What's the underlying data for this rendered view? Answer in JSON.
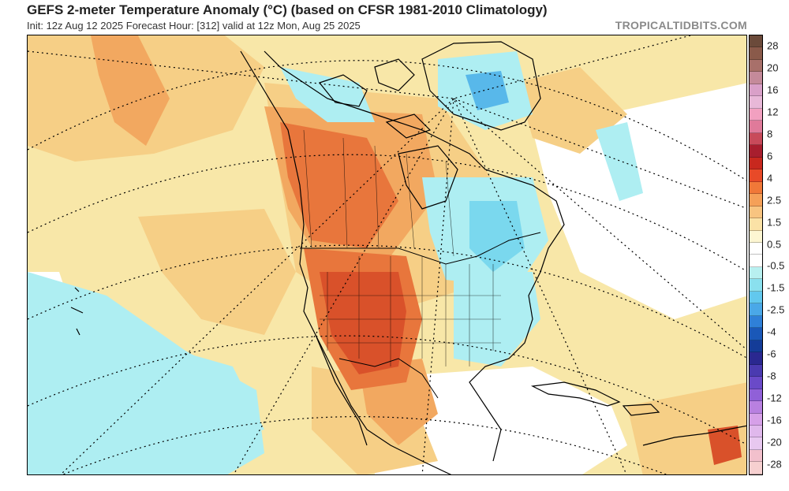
{
  "header": {
    "title": "GEFS 2-meter Temperature Anomaly (°C) (based on CFSR 1981-2010 Climatology)",
    "subtitle": "Init: 12z Aug 12 2025   Forecast Hour: [312]   valid at 12z Mon, Aug 25 2025",
    "source": "TROPICALTIDBITS.COM"
  },
  "legend": {
    "ticks": [
      "28",
      "20",
      "16",
      "12",
      "8",
      "6",
      "4",
      "2.5",
      "1.5",
      "0.5",
      "-0.5",
      "-1.5",
      "-2.5",
      "-4",
      "-6",
      "-8",
      "-12",
      "-16",
      "-20",
      "-28"
    ],
    "colors": [
      "#6b4a3a",
      "#8a5a4a",
      "#a8706a",
      "#c48a9a",
      "#d9a0c8",
      "#e8b8d8",
      "#f2a0c0",
      "#e07a9a",
      "#c84a5a",
      "#a81e2e",
      "#c8281e",
      "#e84a28",
      "#f07838",
      "#f5a058",
      "#f8c480",
      "#fbe2a6",
      "#fdf6d2",
      "#ffffff",
      "#ffffff",
      "#b8f0f0",
      "#8ae0ee",
      "#62c8ee",
      "#4aa8e8",
      "#2f80d8",
      "#1a58b8",
      "#143c98",
      "#2a2890",
      "#4a3ab0",
      "#6a4ac8",
      "#9060d8",
      "#b880e0",
      "#d6a0e8",
      "#e0b8ec",
      "#e8c8f0",
      "#f2c0cc",
      "#f6d0d0"
    ]
  },
  "map": {
    "colors": {
      "ocean_base": "#f8e7a8",
      "warm_light": "#f6cf86",
      "warm_mid": "#f2a860",
      "warm_strong": "#e8763c",
      "warm_hot": "#d9512a",
      "cool_light": "#aeeef2",
      "cool_mid": "#7ad8ee",
      "cool_strong": "#58b8ea",
      "neutral": "#ffffff",
      "boundary": "#000000"
    }
  }
}
